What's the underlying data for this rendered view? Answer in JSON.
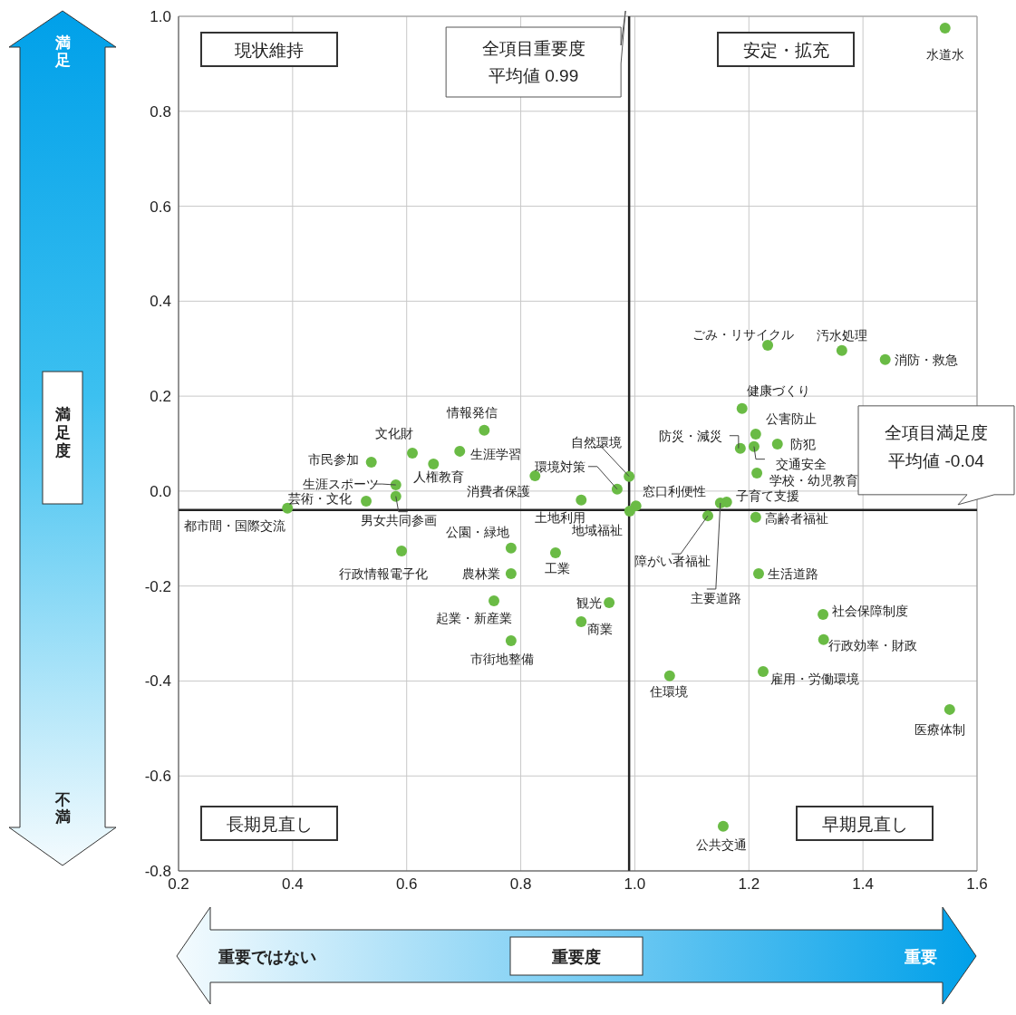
{
  "chart_data": {
    "type": "scatter",
    "xlabel": "重要度",
    "ylabel": "満足度",
    "series": [
      {
        "color": "#6abb45",
        "x": [
          1.544,
          1.233,
          1.363,
          1.439,
          1.188,
          1.212,
          1.25,
          1.185,
          1.209,
          1.214,
          1.161,
          1.15,
          1.128,
          1.212,
          1.217,
          1.33,
          1.331,
          1.225,
          1.552,
          1.061,
          1.155,
          0.99,
          0.969,
          1.002,
          0.991,
          0.906,
          0.825,
          0.861,
          0.955,
          0.906,
          0.783,
          0.783,
          0.753,
          0.783,
          0.736,
          0.693,
          0.647,
          0.61,
          0.538,
          0.581,
          0.581,
          0.529,
          0.391,
          0.591
        ],
        "values": [
          0.975,
          0.307,
          0.296,
          0.277,
          0.174,
          0.12,
          0.099,
          0.09,
          0.094,
          0.038,
          -0.023,
          -0.025,
          -0.052,
          -0.055,
          -0.174,
          -0.26,
          -0.313,
          -0.38,
          -0.46,
          -0.389,
          -0.706,
          0.031,
          0.004,
          -0.031,
          -0.042,
          -0.019,
          0.032,
          -0.13,
          -0.235,
          -0.275,
          -0.12,
          -0.174,
          -0.231,
          -0.315,
          0.128,
          0.084,
          0.057,
          0.08,
          0.061,
          0.013,
          -0.011,
          -0.021,
          -0.036,
          -0.126
        ]
      }
    ],
    "xlim": [
      0.2,
      1.6
    ],
    "xticks": [
      0.2,
      0.4,
      0.6,
      0.8,
      {
        "value": 1,
        "label": "1.0"
      },
      1.2,
      1.4,
      1.6
    ],
    "ylim": [
      -0.8,
      1
    ],
    "yticks": [
      -0.8,
      -0.6,
      -0.4,
      -0.2,
      {
        "value": 0,
        "label": "0.0"
      },
      0.2,
      0.4,
      0.6,
      0.8,
      {
        "value": 1,
        "label": "1.0"
      }
    ],
    "grid": true,
    "marker": "circle",
    "ref_lines": [
      {
        "axis": "x",
        "value": 0.99,
        "label": "全項目重要度平均値 0.99",
        "color": "#222222"
      },
      {
        "axis": "y",
        "value": -0.04,
        "label": "全項目満足度平均値 -0.04",
        "color": "#222222"
      }
    ],
    "annotations": [
      "現状維持",
      "安定・拡充",
      "長期見直し",
      "早期見直し",
      "満足",
      "不満",
      "重要ではない",
      "重要",
      {
        "text": "水道水",
        "x": 1.544,
        "y": 0.975
      },
      {
        "text": "ごみ・リサイクル",
        "x": 1.233,
        "y": 0.307
      },
      {
        "text": "汚水処理",
        "x": 1.363,
        "y": 0.296
      },
      {
        "text": "消防・救急",
        "x": 1.439,
        "y": 0.277
      },
      {
        "text": "健康づくり",
        "x": 1.188,
        "y": 0.174
      },
      {
        "text": "公害防止",
        "x": 1.212,
        "y": 0.12
      },
      {
        "text": "防犯",
        "x": 1.25,
        "y": 0.099
      },
      {
        "text": "防災・減災",
        "x": 1.185,
        "y": 0.09
      },
      {
        "text": "交通安全",
        "x": 1.209,
        "y": 0.094
      },
      {
        "text": "学校・幼児教育",
        "x": 1.214,
        "y": 0.038
      },
      {
        "text": "子育て支援",
        "x": 1.161,
        "y": -0.023
      },
      {
        "text": "主要道路",
        "x": 1.15,
        "y": -0.025
      },
      {
        "text": "障がい者福祉",
        "x": 1.128,
        "y": -0.052
      },
      {
        "text": "高齢者福祉",
        "x": 1.212,
        "y": -0.055
      },
      {
        "text": "生活道路",
        "x": 1.217,
        "y": -0.174
      },
      {
        "text": "社会保障制度",
        "x": 1.33,
        "y": -0.26
      },
      {
        "text": "行政効率・財政",
        "x": 1.331,
        "y": -0.313
      },
      {
        "text": "雇用・労働環境",
        "x": 1.225,
        "y": -0.38
      },
      {
        "text": "医療体制",
        "x": 1.552,
        "y": -0.46
      },
      {
        "text": "住環境",
        "x": 1.061,
        "y": -0.389
      },
      {
        "text": "公共交通",
        "x": 1.155,
        "y": -0.706
      },
      {
        "text": "自然環境",
        "x": 0.99,
        "y": 0.031
      },
      {
        "text": "環境対策",
        "x": 0.969,
        "y": 0.004
      },
      {
        "text": "窓口利便性",
        "x": 1.002,
        "y": -0.031
      },
      {
        "text": "地域福祉",
        "x": 0.991,
        "y": -0.042
      },
      {
        "text": "土地利用",
        "x": 0.906,
        "y": -0.019
      },
      {
        "text": "消費者保護",
        "x": 0.825,
        "y": 0.032
      },
      {
        "text": "工業",
        "x": 0.861,
        "y": -0.13
      },
      {
        "text": "観光",
        "x": 0.955,
        "y": -0.235
      },
      {
        "text": "商業",
        "x": 0.906,
        "y": -0.275
      },
      {
        "text": "公園・緑地",
        "x": 0.783,
        "y": -0.12
      },
      {
        "text": "農林業",
        "x": 0.783,
        "y": -0.174
      },
      {
        "text": "起業・新産業",
        "x": 0.753,
        "y": -0.231
      },
      {
        "text": "市街地整備",
        "x": 0.783,
        "y": -0.315
      },
      {
        "text": "情報発信",
        "x": 0.736,
        "y": 0.128
      },
      {
        "text": "生涯学習",
        "x": 0.693,
        "y": 0.084
      },
      {
        "text": "人権教育",
        "x": 0.647,
        "y": 0.057
      },
      {
        "text": "文化財",
        "x": 0.61,
        "y": 0.08
      },
      {
        "text": "市民参加",
        "x": 0.538,
        "y": 0.061
      },
      {
        "text": "生涯スポーツ",
        "x": 0.581,
        "y": 0.013
      },
      {
        "text": "男女共同参画",
        "x": 0.581,
        "y": -0.011
      },
      {
        "text": "芸術・文化",
        "x": 0.529,
        "y": -0.021
      },
      {
        "text": "都市間・国際交流",
        "x": 0.391,
        "y": -0.036
      },
      {
        "text": "行政情報電子化",
        "x": 0.591,
        "y": -0.126
      }
    ]
  }
}
